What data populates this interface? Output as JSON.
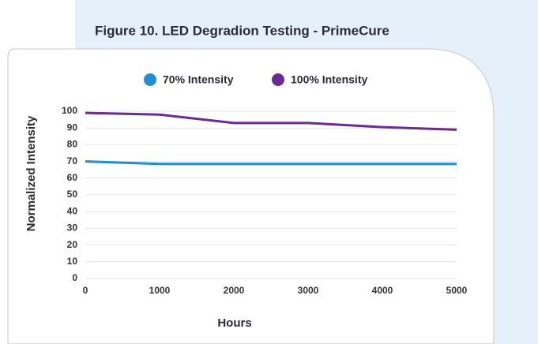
{
  "chart_data": {
    "type": "line",
    "title": "Figure 10. LED Degradion Testing - PrimeCure",
    "x_label": "Hours",
    "y_label": "Normalized Intensity",
    "x": [
      0,
      1000,
      2000,
      3000,
      4000,
      5000
    ],
    "series": [
      {
        "name": "70% Intensity",
        "color": "#1e8fd0",
        "values": [
          70,
          68.5,
          68.5,
          68.5,
          68.5,
          68.5
        ]
      },
      {
        "name": "100% Intensity",
        "color": "#6a2b95",
        "values": [
          99,
          98,
          93,
          93,
          90.5,
          89
        ]
      }
    ],
    "xlim": [
      0,
      5000
    ],
    "xticks": [
      0,
      1000,
      2000,
      3000,
      4000,
      5000
    ],
    "ylim": [
      0,
      100
    ],
    "yticks": [
      0,
      10,
      20,
      30,
      40,
      50,
      60,
      70,
      80,
      90,
      100
    ],
    "grid": true,
    "legend": "top"
  }
}
